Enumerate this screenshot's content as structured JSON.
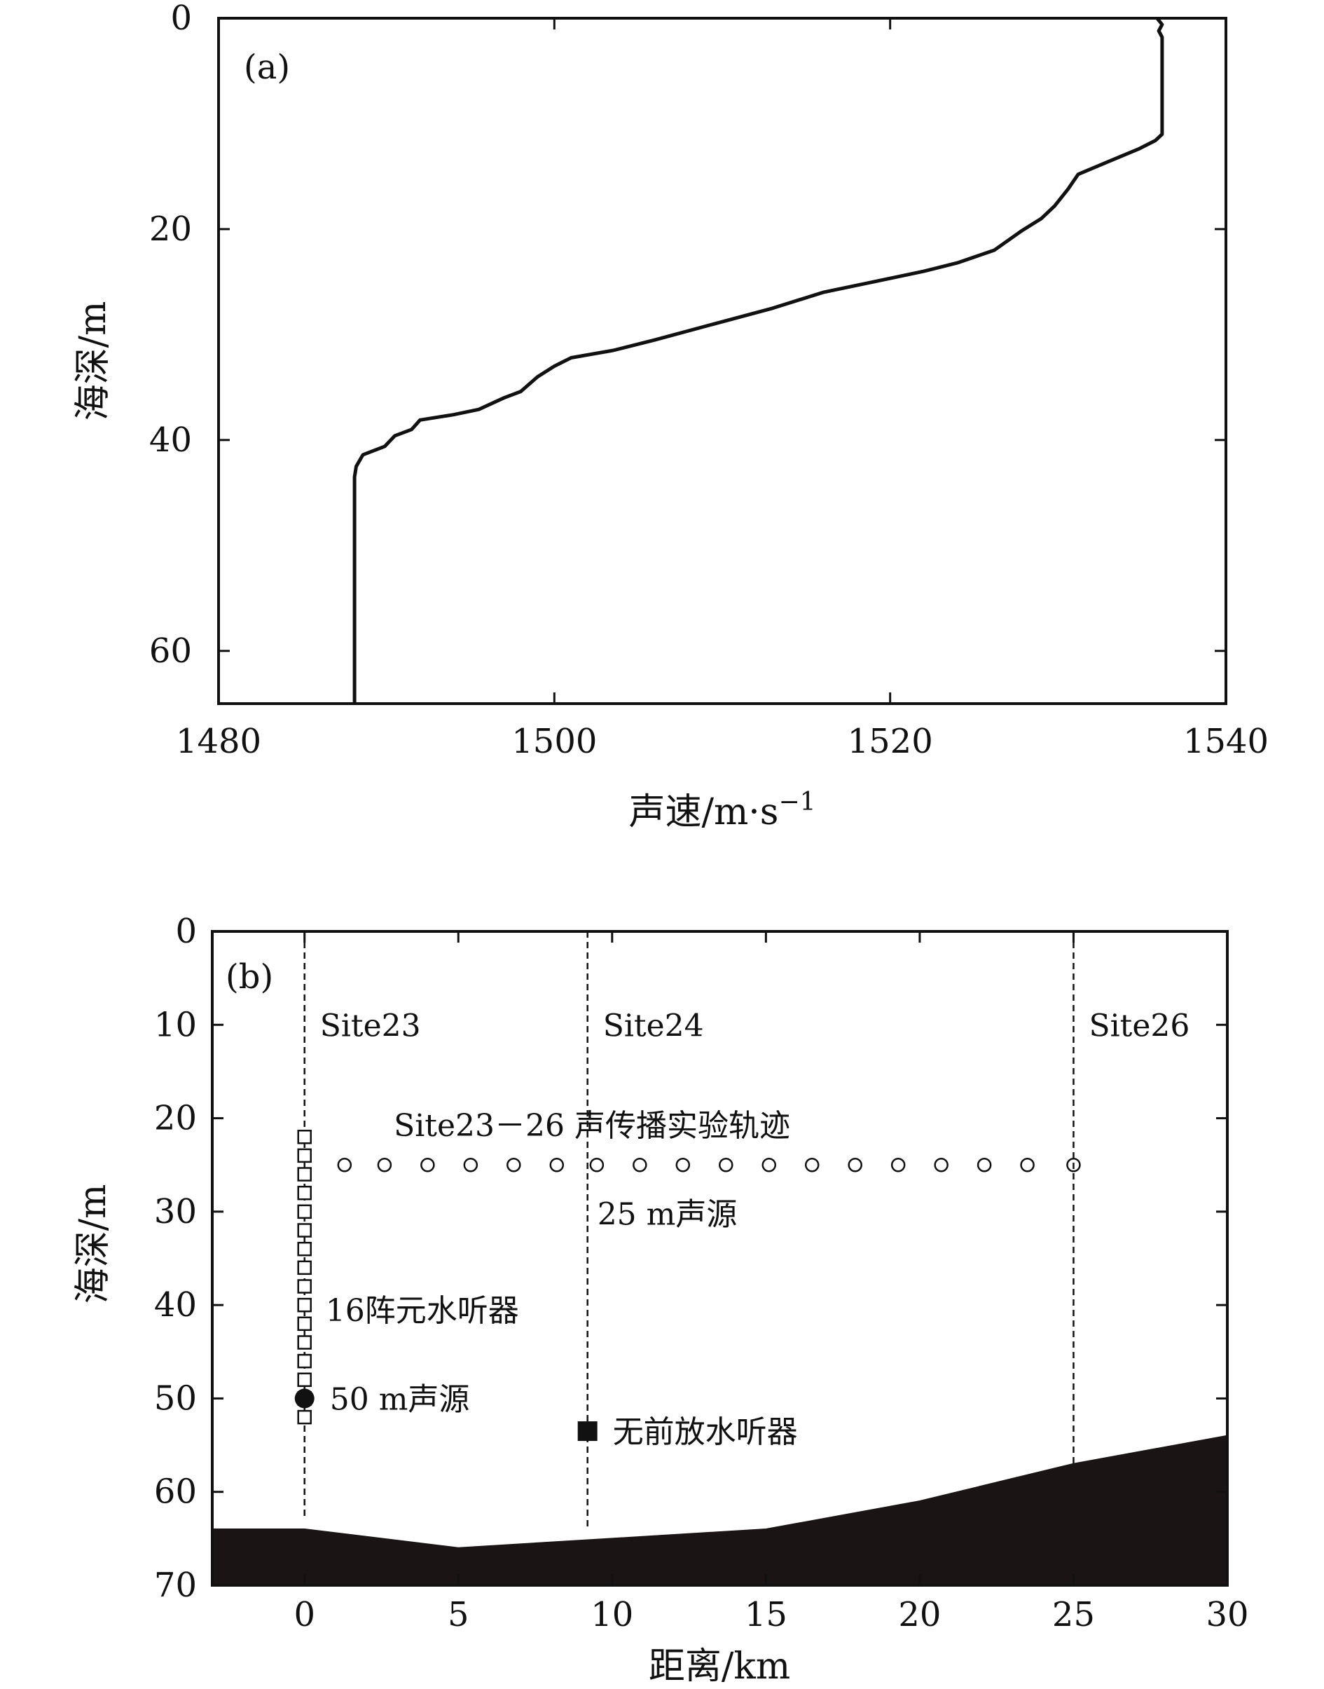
{
  "chart_data": [
    {
      "type": "line",
      "panel_label": "(a)",
      "xlabel": "声速/m·s",
      "xlabel_superscript": "−1",
      "ylabel": "海深/m",
      "xlim": [
        1480,
        1540
      ],
      "ylim": [
        65,
        0
      ],
      "xticks": [
        1480,
        1500,
        1520,
        1540
      ],
      "xtick_labels": [
        "1480",
        "1500",
        "1520",
        "1540"
      ],
      "yticks": [
        0,
        20,
        40,
        60
      ],
      "ytick_labels": [
        "0",
        "20",
        "40",
        "60"
      ],
      "series": [
        {
          "name": "sound speed profile",
          "points": [
            [
              1535.9,
              0
            ],
            [
              1536.2,
              0.6
            ],
            [
              1536.0,
              1.2
            ],
            [
              1536.2,
              1.8
            ],
            [
              1536.2,
              11.0
            ],
            [
              1535.8,
              11.6
            ],
            [
              1534.8,
              12.4
            ],
            [
              1533.0,
              13.6
            ],
            [
              1531.2,
              14.8
            ],
            [
              1530.6,
              16.2
            ],
            [
              1529.8,
              17.8
            ],
            [
              1529.0,
              19.0
            ],
            [
              1527.8,
              20.2
            ],
            [
              1526.2,
              22.0
            ],
            [
              1524.0,
              23.2
            ],
            [
              1522.0,
              24.0
            ],
            [
              1519.0,
              25.0
            ],
            [
              1516.0,
              26.0
            ],
            [
              1513.0,
              27.5
            ],
            [
              1509.5,
              29.0
            ],
            [
              1506.0,
              30.5
            ],
            [
              1503.5,
              31.5
            ],
            [
              1501.0,
              32.2
            ],
            [
              1500.0,
              33.0
            ],
            [
              1499.0,
              34.0
            ],
            [
              1498.0,
              35.4
            ],
            [
              1497.0,
              36.0
            ],
            [
              1495.5,
              37.1
            ],
            [
              1494.0,
              37.6
            ],
            [
              1492.0,
              38.1
            ],
            [
              1491.5,
              39.0
            ],
            [
              1490.5,
              39.6
            ],
            [
              1489.9,
              40.6
            ],
            [
              1488.6,
              41.4
            ],
            [
              1488.2,
              42.5
            ],
            [
              1488.1,
              43.5
            ],
            [
              1488.1,
              65.0
            ]
          ]
        }
      ]
    },
    {
      "type": "scatter",
      "panel_label": "(b)",
      "xlabel": "距离/km",
      "ylabel": "海深/m",
      "xlim": [
        -3,
        30
      ],
      "ylim": [
        70,
        0
      ],
      "xticks": [
        0,
        5,
        10,
        15,
        20,
        25,
        30
      ],
      "xtick_labels": [
        "0",
        "5",
        "10",
        "15",
        "20",
        "25",
        "30"
      ],
      "yticks": [
        0,
        10,
        20,
        30,
        40,
        50,
        60,
        70
      ],
      "ytick_labels": [
        "0",
        "10",
        "20",
        "30",
        "40",
        "50",
        "60",
        "70"
      ],
      "bathymetry": [
        [
          -3,
          64.0
        ],
        [
          0,
          64.0
        ],
        [
          5,
          66.0
        ],
        [
          10,
          65.0
        ],
        [
          15,
          64.0
        ],
        [
          20,
          61.0
        ],
        [
          25,
          57.0
        ],
        [
          30,
          54.0
        ]
      ],
      "sites": [
        {
          "label": "Site23",
          "x": 0
        },
        {
          "label": "Site24",
          "x": 9.2
        },
        {
          "label": "Site26",
          "x": 25
        }
      ],
      "source_track": {
        "label": "Site23－26 声传播实验轨迹",
        "depth": 25,
        "x": [
          1.3,
          2.6,
          4.0,
          5.4,
          6.8,
          8.2,
          9.5,
          10.9,
          12.3,
          13.7,
          15.1,
          16.5,
          17.9,
          19.3,
          20.7,
          22.1,
          23.5,
          25.0
        ]
      },
      "source_25m_label": "25 m声源",
      "vla": {
        "label": "16阵元水听器",
        "x": 0,
        "depths": [
          22.0,
          24.0,
          26.0,
          28.0,
          30.0,
          32.0,
          34.0,
          36.0,
          38.0,
          40.0,
          42.0,
          44.0,
          46.0,
          48.0,
          50.0,
          52.0
        ]
      },
      "source_50m": {
        "label": "50 m声源",
        "x": 0,
        "depth": 50
      },
      "hydrophone": {
        "label": "无前放水听器",
        "x": 9.2,
        "depth": 53.5
      }
    }
  ]
}
